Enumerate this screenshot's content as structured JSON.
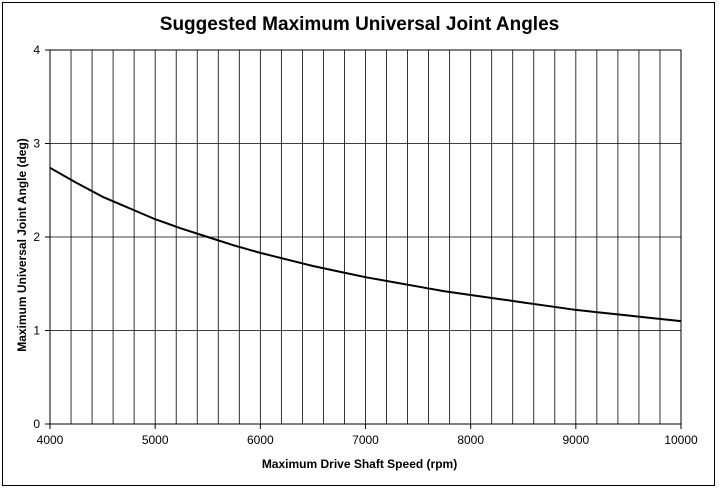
{
  "chart_data": {
    "type": "line",
    "title": "Suggested Maximum Universal Joint Angles",
    "xlabel": "Maximum Drive Shaft Speed (rpm)",
    "ylabel": "Maximum Universal Joint Angle (deg)",
    "xlim": [
      4000,
      10000
    ],
    "ylim": [
      0,
      4
    ],
    "x_ticks": [
      4000,
      5000,
      6000,
      7000,
      8000,
      9000,
      10000
    ],
    "y_ticks": [
      0,
      1,
      2,
      3,
      4
    ],
    "x_gridlines": [
      4000,
      4200,
      4400,
      4600,
      4800,
      5000,
      5200,
      5400,
      5600,
      5800,
      6000,
      6200,
      6400,
      6600,
      6800,
      7000,
      7200,
      7400,
      7600,
      7800,
      8000,
      8200,
      8400,
      8600,
      8800,
      9000,
      9200,
      9400,
      9600,
      9800,
      10000
    ],
    "grid": true,
    "legend": "none",
    "series": [
      {
        "color": "#000000",
        "x": [
          4000,
          4250,
          4500,
          4750,
          5000,
          5250,
          5500,
          5750,
          6000,
          6250,
          6500,
          6750,
          7000,
          7250,
          7500,
          7750,
          8000,
          8250,
          8500,
          8750,
          9000,
          9250,
          9500,
          9750,
          10000
        ],
        "y": [
          2.74,
          2.58,
          2.43,
          2.31,
          2.19,
          2.09,
          2.0,
          1.91,
          1.83,
          1.76,
          1.69,
          1.63,
          1.57,
          1.52,
          1.47,
          1.42,
          1.38,
          1.34,
          1.3,
          1.26,
          1.22,
          1.19,
          1.16,
          1.13,
          1.1
        ]
      }
    ]
  }
}
